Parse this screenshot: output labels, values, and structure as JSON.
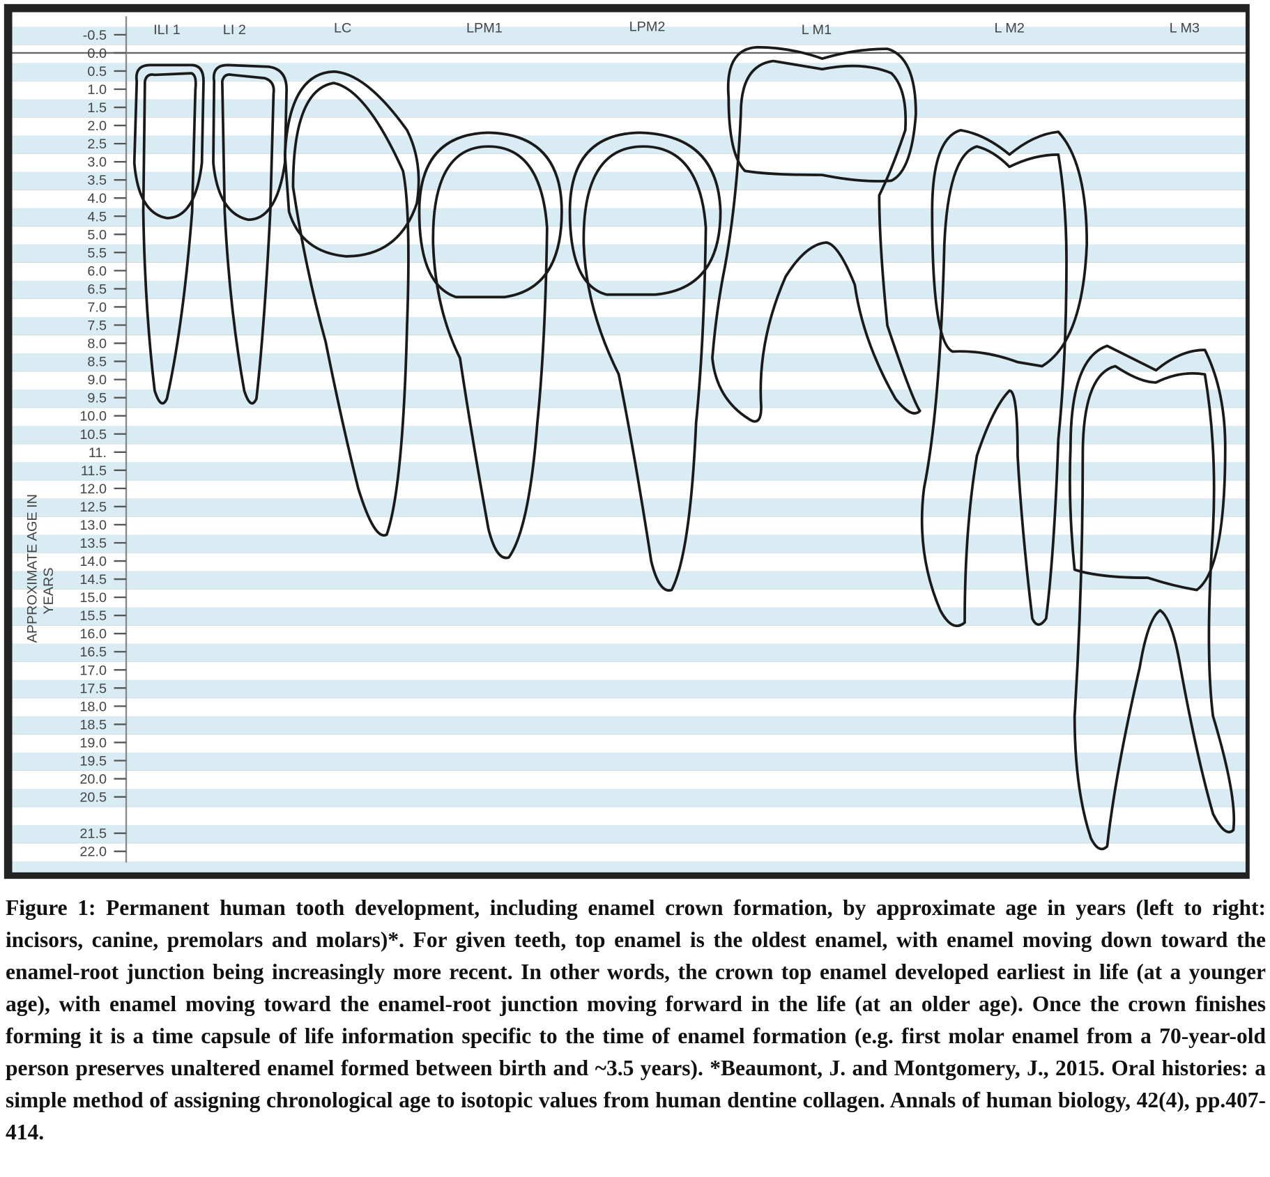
{
  "figure": {
    "y_axis_label_line1": "APPROXIMATE AGE IN",
    "y_axis_label_line2": "YEARS",
    "y_ticks": [
      {
        "label": "-0.5",
        "value": -0.5
      },
      {
        "label": "0.0",
        "value": 0
      },
      {
        "label": "0.5",
        "value": 0.5
      },
      {
        "label": "1.0",
        "value": 1
      },
      {
        "label": "1.5",
        "value": 1.5
      },
      {
        "label": "2.0",
        "value": 2
      },
      {
        "label": "2.5",
        "value": 2.5
      },
      {
        "label": "3.0",
        "value": 3
      },
      {
        "label": "3.5",
        "value": 3.5
      },
      {
        "label": "4.0",
        "value": 4
      },
      {
        "label": "4.5",
        "value": 4.5
      },
      {
        "label": "5.0",
        "value": 5
      },
      {
        "label": "5.5",
        "value": 5.5
      },
      {
        "label": "6.0",
        "value": 6
      },
      {
        "label": "6.5",
        "value": 6.5
      },
      {
        "label": "7.0",
        "value": 7
      },
      {
        "label": "7.5",
        "value": 7.5
      },
      {
        "label": "8.0",
        "value": 8
      },
      {
        "label": "8.5",
        "value": 8.5
      },
      {
        "label": "9.0",
        "value": 9
      },
      {
        "label": "9.5",
        "value": 9.5
      },
      {
        "label": "10.0",
        "value": 10
      },
      {
        "label": "10.5",
        "value": 10.5
      },
      {
        "label": "11.",
        "value": 11
      },
      {
        "label": "11.5",
        "value": 11.5
      },
      {
        "label": "12.0",
        "value": 12
      },
      {
        "label": "12.5",
        "value": 12.5
      },
      {
        "label": "13.0",
        "value": 13
      },
      {
        "label": "13.5",
        "value": 13.5
      },
      {
        "label": "14.0",
        "value": 14
      },
      {
        "label": "14.5",
        "value": 14.5
      },
      {
        "label": "15.0",
        "value": 15
      },
      {
        "label": "15.5",
        "value": 15.5
      },
      {
        "label": "16.0",
        "value": 16
      },
      {
        "label": "16.5",
        "value": 16.5
      },
      {
        "label": "17.0",
        "value": 17
      },
      {
        "label": "17.5",
        "value": 17.5
      },
      {
        "label": "18.0",
        "value": 18
      },
      {
        "label": "18.5",
        "value": 18.5
      },
      {
        "label": "19.0",
        "value": 19
      },
      {
        "label": "19.5",
        "value": 19.5
      },
      {
        "label": "20.0",
        "value": 20
      },
      {
        "label": "20.5",
        "value": 20.5
      },
      {
        "label": "21.5",
        "value": 21.5
      },
      {
        "label": "22.0",
        "value": 22
      }
    ],
    "teeth": [
      "ILI 1",
      "LI 2",
      "LC",
      "LPM1",
      "LPM2",
      "L M1",
      "L M2",
      "L M3"
    ],
    "stripe_color": "#d9ecf3"
  },
  "caption": "Figure 1: Permanent human tooth development, including enamel crown formation, by approximate age in years (left to right: incisors, canine, premolars and molars)*. For given teeth, top enamel is the oldest enamel, with enamel moving down toward the enamel-root junction being increasingly more recent. In other words, the crown top enamel developed earliest in life (at a younger age), with enamel moving toward the enamel-root junction moving forward in the life (at an older age). Once the crown finishes forming it is a time capsule of life information specific to the time of enamel formation (e.g. first molar enamel from a 70-year-old person preserves unaltered enamel formed between birth and ~3.5 years). *Beaumont, J. and Montgomery, J., 2015. Oral histories: a simple method of assigning chronological age to isotopic values from human dentine collagen. Annals of human biology, 42(4), pp.407-414."
}
